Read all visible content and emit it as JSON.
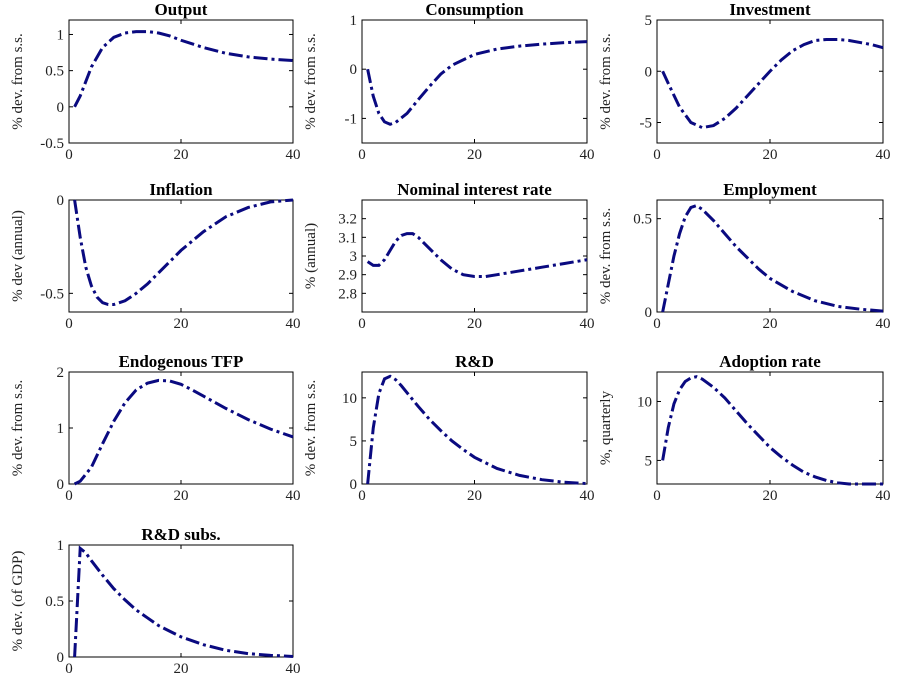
{
  "chart_data": [
    {
      "type": "line",
      "title": "Output",
      "xlabel": "",
      "ylabel": "% dev. from s.s.",
      "xlim": [
        0,
        40
      ],
      "ylim": [
        -0.5,
        1.2
      ],
      "xticks": [
        0,
        20,
        40
      ],
      "yticks": [
        -0.5,
        0,
        0.5,
        1
      ],
      "ytick_labels": [
        "-0.5",
        "0",
        "0.5",
        "1"
      ],
      "series": [
        {
          "x": [
            1,
            2,
            4,
            6,
            8,
            10,
            12,
            14,
            16,
            18,
            20,
            24,
            28,
            32,
            36,
            40
          ],
          "y": [
            0,
            0.15,
            0.55,
            0.82,
            0.96,
            1.02,
            1.04,
            1.04,
            1.02,
            0.98,
            0.92,
            0.82,
            0.74,
            0.69,
            0.66,
            0.64
          ]
        }
      ]
    },
    {
      "type": "line",
      "title": "Consumption",
      "xlabel": "",
      "ylabel": "% dev. from s.s.",
      "xlim": [
        0,
        40
      ],
      "ylim": [
        -1.5,
        1
      ],
      "xticks": [
        0,
        20,
        40
      ],
      "yticks": [
        -1,
        0,
        1
      ],
      "ytick_labels": [
        "-1",
        "0",
        "1"
      ],
      "series": [
        {
          "x": [
            1,
            2,
            3,
            4,
            5,
            6,
            8,
            10,
            12,
            14,
            16,
            20,
            24,
            28,
            32,
            36,
            40
          ],
          "y": [
            0,
            -0.55,
            -0.9,
            -1.07,
            -1.12,
            -1.08,
            -0.9,
            -0.62,
            -0.35,
            -0.1,
            0.08,
            0.3,
            0.41,
            0.47,
            0.51,
            0.54,
            0.56
          ]
        }
      ]
    },
    {
      "type": "line",
      "title": "Investment",
      "xlabel": "",
      "ylabel": "% dev. from s.s.",
      "xlim": [
        0,
        40
      ],
      "ylim": [
        -7,
        5
      ],
      "xticks": [
        0,
        20,
        40
      ],
      "yticks": [
        -5,
        0,
        5
      ],
      "ytick_labels": [
        "-5",
        "0",
        "5"
      ],
      "series": [
        {
          "x": [
            1,
            2,
            4,
            6,
            8,
            10,
            12,
            14,
            16,
            18,
            20,
            22,
            24,
            26,
            28,
            30,
            32,
            34,
            36,
            38,
            40
          ],
          "y": [
            0,
            -1.2,
            -3.5,
            -5,
            -5.5,
            -5.3,
            -4.6,
            -3.6,
            -2.4,
            -1.2,
            0,
            1.1,
            2,
            2.6,
            3,
            3.1,
            3.1,
            3,
            2.8,
            2.6,
            2.3
          ]
        }
      ]
    },
    {
      "type": "line",
      "title": "Inflation",
      "xlabel": "",
      "ylabel": "% dev (annual)",
      "xlim": [
        0,
        40
      ],
      "ylim": [
        -0.6,
        0
      ],
      "xticks": [
        0,
        20,
        40
      ],
      "yticks": [
        -0.5,
        0
      ],
      "ytick_labels": [
        "-0.5",
        "0"
      ],
      "series": [
        {
          "x": [
            1,
            2,
            3,
            4,
            5,
            6,
            7,
            8,
            10,
            12,
            14,
            16,
            18,
            20,
            24,
            28,
            32,
            36,
            40
          ],
          "y": [
            0,
            -0.2,
            -0.36,
            -0.46,
            -0.52,
            -0.55,
            -0.56,
            -0.56,
            -0.54,
            -0.5,
            -0.45,
            -0.39,
            -0.33,
            -0.27,
            -0.17,
            -0.09,
            -0.04,
            -0.01,
            0
          ]
        }
      ]
    },
    {
      "type": "line",
      "title": "Nominal interest rate",
      "xlabel": "",
      "ylabel": "% (annual)",
      "xlim": [
        0,
        40
      ],
      "ylim": [
        2.7,
        3.3
      ],
      "xticks": [
        0,
        20,
        40
      ],
      "yticks": [
        2.8,
        2.9,
        3,
        3.1,
        3.2
      ],
      "ytick_labels": [
        "2.8",
        "2.9",
        "3",
        "3.1",
        "3.2"
      ],
      "series": [
        {
          "x": [
            1,
            2,
            3,
            4,
            5,
            6,
            7,
            8,
            9,
            10,
            12,
            14,
            16,
            18,
            20,
            22,
            24,
            26,
            28,
            32,
            36,
            40
          ],
          "y": [
            2.97,
            2.95,
            2.95,
            2.98,
            3.03,
            3.08,
            3.11,
            3.12,
            3.12,
            3.1,
            3.04,
            2.98,
            2.93,
            2.9,
            2.89,
            2.89,
            2.9,
            2.91,
            2.92,
            2.94,
            2.96,
            2.98
          ]
        }
      ]
    },
    {
      "type": "line",
      "title": "Employment",
      "xlabel": "",
      "ylabel": "% dev. from s.s.",
      "xlim": [
        0,
        40
      ],
      "ylim": [
        0,
        0.6
      ],
      "xticks": [
        0,
        20,
        40
      ],
      "yticks": [
        0,
        0.5
      ],
      "ytick_labels": [
        "0",
        "0.5"
      ],
      "series": [
        {
          "x": [
            1,
            2,
            3,
            4,
            5,
            6,
            7,
            8,
            10,
            12,
            14,
            16,
            18,
            20,
            24,
            28,
            32,
            36,
            40
          ],
          "y": [
            0,
            0.15,
            0.3,
            0.42,
            0.51,
            0.56,
            0.57,
            0.55,
            0.49,
            0.42,
            0.35,
            0.29,
            0.23,
            0.18,
            0.11,
            0.06,
            0.03,
            0.015,
            0.005
          ]
        }
      ]
    },
    {
      "type": "line",
      "title": "Endogenous TFP",
      "xlabel": "",
      "ylabel": "% dev. from s.s.",
      "xlim": [
        0,
        40
      ],
      "ylim": [
        0,
        2
      ],
      "xticks": [
        0,
        20,
        40
      ],
      "yticks": [
        0,
        1,
        2
      ],
      "ytick_labels": [
        "0",
        "1",
        "2"
      ],
      "series": [
        {
          "x": [
            1,
            2,
            4,
            6,
            8,
            10,
            12,
            14,
            16,
            18,
            20,
            22,
            24,
            28,
            32,
            36,
            40
          ],
          "y": [
            0,
            0.05,
            0.3,
            0.72,
            1.12,
            1.45,
            1.68,
            1.8,
            1.85,
            1.84,
            1.78,
            1.68,
            1.57,
            1.35,
            1.15,
            0.98,
            0.84
          ]
        }
      ]
    },
    {
      "type": "line",
      "title": "R&D",
      "xlabel": "",
      "ylabel": "% dev. from s.s.",
      "xlim": [
        0,
        40
      ],
      "ylim": [
        0,
        13
      ],
      "xticks": [
        0,
        20,
        40
      ],
      "yticks": [
        0,
        5,
        10
      ],
      "ytick_labels": [
        "0",
        "5",
        "10"
      ],
      "series": [
        {
          "x": [
            1,
            2,
            3,
            4,
            5,
            6,
            7,
            8,
            10,
            12,
            14,
            16,
            18,
            20,
            24,
            28,
            32,
            36,
            40
          ],
          "y": [
            0,
            6.5,
            10.5,
            12.2,
            12.5,
            12.1,
            11.4,
            10.6,
            9,
            7.5,
            6.2,
            5,
            4,
            3.1,
            1.8,
            1,
            0.5,
            0.2,
            0.05
          ]
        }
      ]
    },
    {
      "type": "line",
      "title": "Adoption rate",
      "xlabel": "",
      "ylabel": "%, quarterly",
      "xlim": [
        0,
        40
      ],
      "ylim": [
        3,
        12.5
      ],
      "xticks": [
        0,
        20,
        40
      ],
      "yticks": [
        5,
        10
      ],
      "ytick_labels": [
        "5",
        "10"
      ],
      "series": [
        {
          "x": [
            1,
            2,
            3,
            4,
            5,
            6,
            7,
            8,
            10,
            12,
            14,
            16,
            18,
            20,
            22,
            24,
            26,
            28,
            30,
            32,
            34,
            36,
            38,
            40
          ],
          "y": [
            5,
            7.8,
            9.8,
            11,
            11.7,
            12,
            12.1,
            11.9,
            11.2,
            10.3,
            9.2,
            8.1,
            7.1,
            6.1,
            5.3,
            4.6,
            4,
            3.6,
            3.3,
            3.1,
            3,
            3,
            3,
            3
          ]
        }
      ]
    },
    {
      "type": "line",
      "title": "R&D subs.",
      "xlabel": "",
      "ylabel": "% dev. (of GDP)",
      "xlim": [
        0,
        40
      ],
      "ylim": [
        0,
        1
      ],
      "xticks": [
        0,
        20,
        40
      ],
      "yticks": [
        0,
        0.5,
        1
      ],
      "ytick_labels": [
        "0",
        "0.5",
        "1"
      ],
      "series": [
        {
          "x": [
            1,
            2,
            3,
            4,
            6,
            8,
            10,
            12,
            14,
            16,
            18,
            20,
            24,
            28,
            32,
            36,
            40
          ],
          "y": [
            0,
            0.97,
            0.93,
            0.86,
            0.73,
            0.61,
            0.51,
            0.42,
            0.35,
            0.28,
            0.23,
            0.18,
            0.11,
            0.06,
            0.03,
            0.015,
            0.005
          ]
        }
      ]
    }
  ]
}
